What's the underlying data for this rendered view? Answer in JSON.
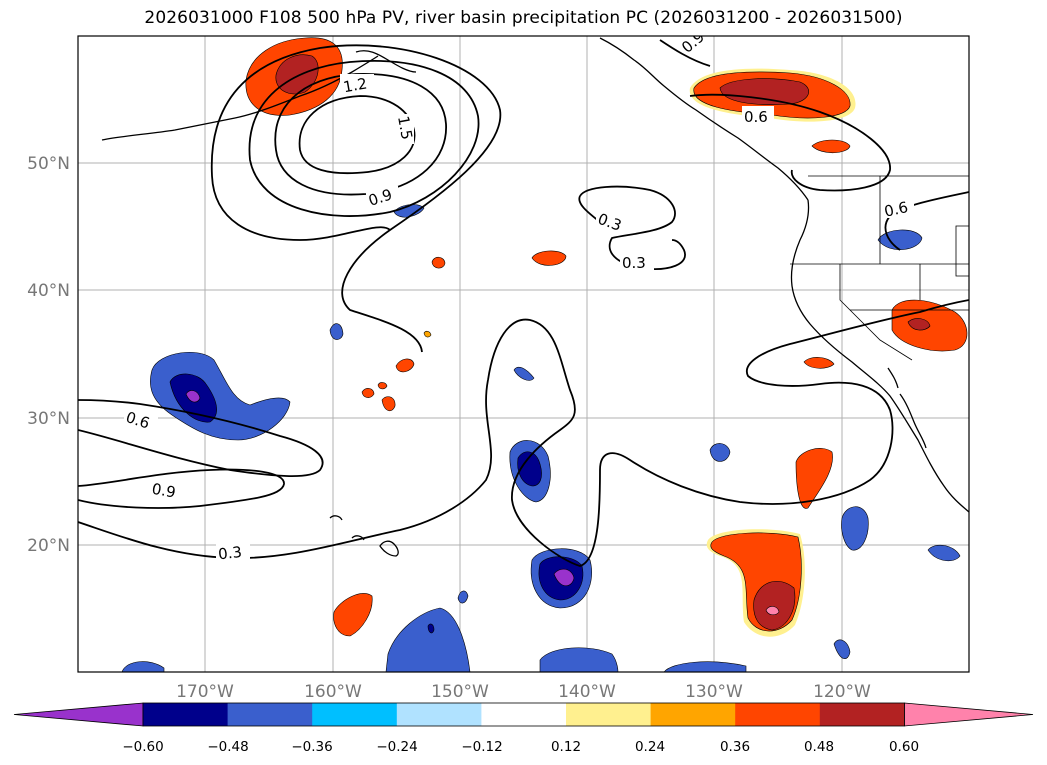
{
  "title": "2026031000 F108 500 hPa PV, river basin precipitation PC (2026031200 - 2026031500)",
  "map": {
    "lon_range": [
      -180,
      -110
    ],
    "lat_range": [
      10,
      60
    ],
    "lon_ticks": [
      {
        "value": -170,
        "label": "170°W"
      },
      {
        "value": -160,
        "label": "160°W"
      },
      {
        "value": -150,
        "label": "150°W"
      },
      {
        "value": -140,
        "label": "140°W"
      },
      {
        "value": -130,
        "label": "130°W"
      },
      {
        "value": -120,
        "label": "120°W"
      }
    ],
    "lat_ticks": [
      {
        "value": 20,
        "label": "20°N"
      },
      {
        "value": 30,
        "label": "30°N"
      },
      {
        "value": 40,
        "label": "40°N"
      },
      {
        "value": 50,
        "label": "50°N"
      }
    ],
    "gridlines": true,
    "contour_labels": [
      "1.2",
      "1.5",
      "0.9",
      "0.6",
      "0.9",
      "0.3",
      "0.3",
      "0.6",
      "0.9",
      "0.3",
      "0.6"
    ]
  },
  "colorbar": {
    "orientation": "horizontal",
    "extend": "both",
    "colors": [
      "#9932cc",
      "#00008b",
      "#3a5fcd",
      "#00bfff",
      "#b0e2ff",
      "#ffffff",
      "#fff08f",
      "#ffa500",
      "#ff4500",
      "#b22222",
      "#ff82ab"
    ],
    "tick_labels": [
      "−0.60",
      "−0.48",
      "−0.36",
      "−0.24",
      "−0.12",
      "0.12",
      "0.24",
      "0.36",
      "0.48",
      "0.60"
    ]
  }
}
